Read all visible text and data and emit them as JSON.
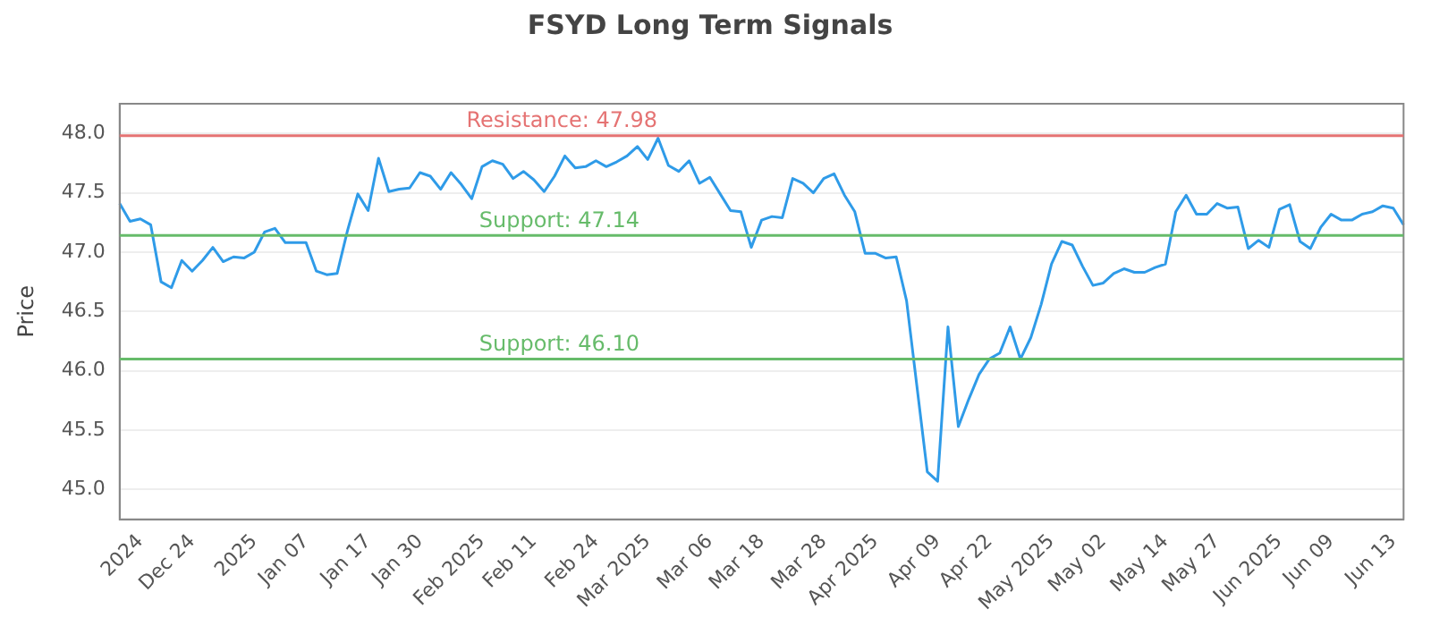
{
  "chart_data": {
    "type": "line",
    "title": "FSYD Long Term Signals",
    "ylabel": "Price",
    "categories": [
      null,
      null,
      "2024",
      null,
      null,
      null,
      null,
      "Dec 24",
      null,
      null,
      null,
      null,
      null,
      "2025",
      null,
      null,
      null,
      null,
      "Jan 07",
      null,
      null,
      null,
      null,
      null,
      "Jan 17",
      null,
      null,
      null,
      null,
      "Jan 30",
      null,
      null,
      null,
      null,
      null,
      "Feb 2025",
      null,
      null,
      null,
      null,
      "Feb 11",
      null,
      null,
      null,
      null,
      null,
      "Feb 24",
      null,
      null,
      null,
      null,
      "Mar 2025",
      null,
      null,
      null,
      null,
      null,
      "Mar 06",
      null,
      null,
      null,
      null,
      "Mar 18",
      null,
      null,
      null,
      null,
      null,
      "Mar 28",
      null,
      null,
      null,
      null,
      "Apr 2025",
      null,
      null,
      null,
      null,
      null,
      "Apr 09",
      null,
      null,
      null,
      null,
      "Apr 22",
      null,
      null,
      null,
      null,
      null,
      "May 2025",
      null,
      null,
      null,
      null,
      "May 02",
      null,
      null,
      null,
      null,
      null,
      "May 14",
      null,
      null,
      null,
      null,
      "May 27",
      null,
      null,
      null,
      null,
      null,
      "Jun 2025",
      null,
      null,
      null,
      null,
      "Jun 09",
      null,
      null,
      null,
      null,
      null,
      "Jun 13",
      null
    ],
    "series": [
      {
        "color": "#2f9be8",
        "values": [
          47.41,
          47.26,
          47.28,
          47.23,
          46.75,
          46.7,
          46.93,
          46.84,
          46.93,
          47.04,
          46.92,
          46.96,
          46.95,
          47.0,
          47.17,
          47.2,
          47.08,
          47.08,
          47.08,
          46.84,
          46.81,
          46.82,
          47.18,
          47.49,
          47.35,
          47.79,
          47.51,
          47.53,
          47.54,
          47.67,
          47.64,
          47.53,
          47.67,
          47.57,
          47.45,
          47.72,
          47.77,
          47.74,
          47.62,
          47.68,
          47.61,
          47.51,
          47.64,
          47.81,
          47.71,
          47.72,
          47.77,
          47.72,
          47.76,
          47.81,
          47.89,
          47.78,
          47.96,
          47.73,
          47.68,
          47.77,
          47.58,
          47.63,
          47.49,
          47.35,
          47.34,
          47.04,
          47.27,
          47.3,
          47.29,
          47.62,
          47.58,
          47.5,
          47.62,
          47.66,
          47.48,
          47.34,
          46.99,
          46.99,
          46.95,
          46.96,
          46.59,
          45.87,
          45.15,
          45.07,
          46.37,
          45.53,
          45.76,
          45.97,
          46.1,
          46.15,
          46.37,
          46.1,
          46.28,
          46.56,
          46.9,
          47.09,
          47.06,
          46.88,
          46.72,
          46.74,
          46.82,
          46.86,
          46.83,
          46.83,
          46.87,
          46.9,
          47.34,
          47.48,
          47.32,
          47.32,
          47.41,
          47.37,
          47.38,
          47.03,
          47.1,
          47.04,
          47.36,
          47.4,
          47.09,
          47.03,
          47.21,
          47.32,
          47.27,
          47.27,
          47.32,
          47.34,
          47.39,
          47.37,
          47.23
        ]
      }
    ],
    "ylim": [
      44.75,
      48.25
    ],
    "yticks": [
      {
        "value": 45,
        "label": "45.0"
      },
      {
        "value": 45.5,
        "label": "45.5"
      },
      {
        "value": 46,
        "label": "46.0"
      },
      {
        "value": 46.5,
        "label": "46.5"
      },
      {
        "value": 47,
        "label": "47.0"
      },
      {
        "value": 47.5,
        "label": "47.5"
      },
      {
        "value": 48,
        "label": "48.0"
      }
    ],
    "grid": "y",
    "marker": "none",
    "line_style": "solid",
    "ref_lines": [
      {
        "axis": "y",
        "value": 47.98,
        "label": "Resistance: 47.98",
        "color": "#e57373"
      },
      {
        "axis": "y",
        "value": 47.14,
        "label": "Support: 47.14",
        "color": "#66bb6a"
      },
      {
        "axis": "y",
        "value": 46.1,
        "label": "Support: 46.10",
        "color": "#66bb6a"
      }
    ]
  }
}
